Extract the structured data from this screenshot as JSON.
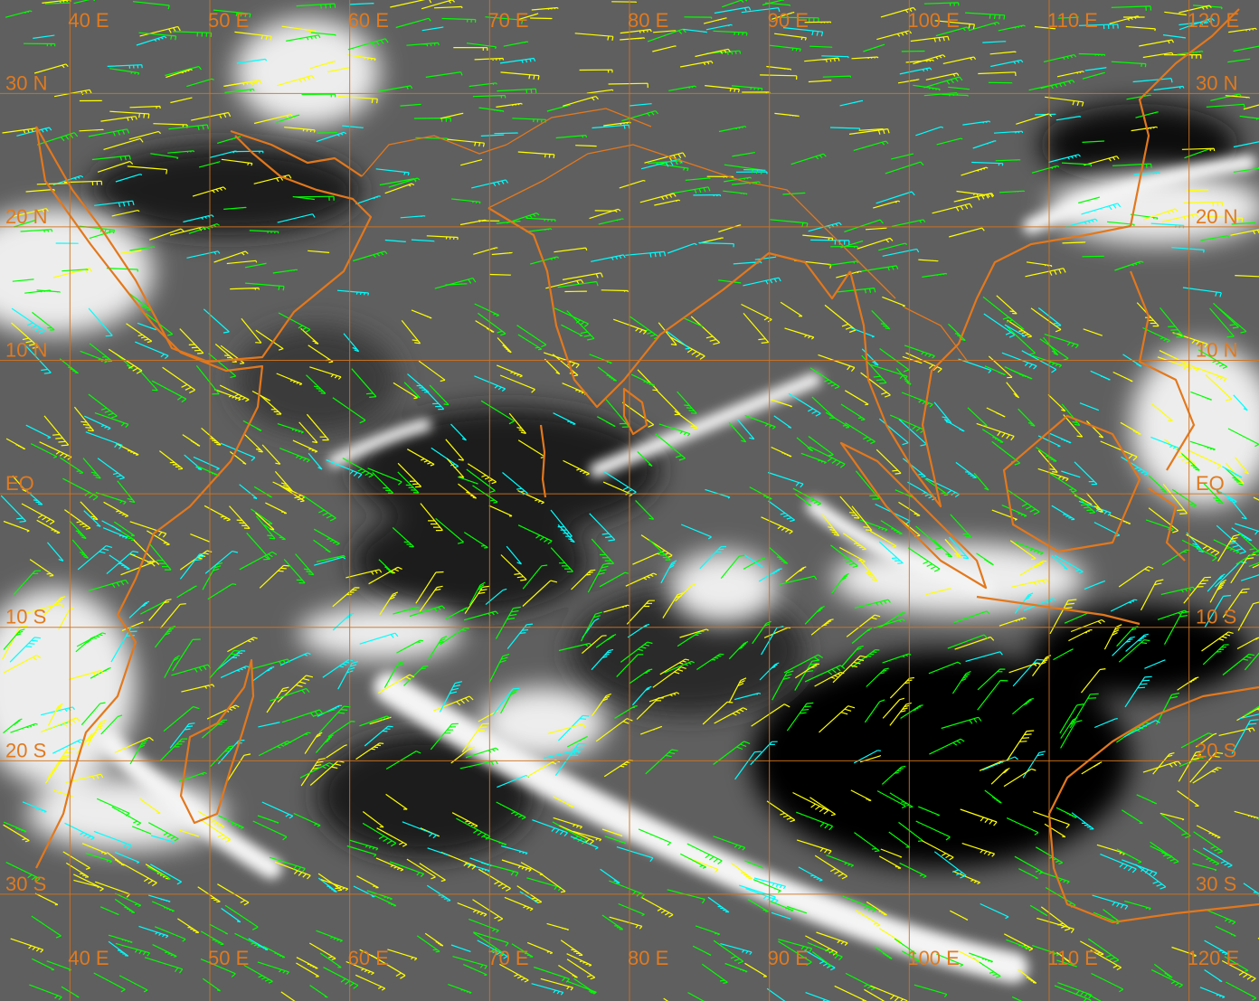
{
  "map": {
    "lon_range": [
      35,
      125
    ],
    "lat_range": [
      -38,
      37
    ],
    "colors": {
      "grid": "#d2741e",
      "coastline": "#e3781c",
      "label": "#e07a1f",
      "wind_high": "#ffff00",
      "wind_mid": "#00ff00",
      "wind_low": "#00ffff",
      "cloud": "#f2f2f2",
      "clear": "#0a0a0a"
    },
    "lat_labels": [
      {
        "text": "30 N",
        "lat": 30
      },
      {
        "text": "20 N",
        "lat": 20
      },
      {
        "text": "10 N",
        "lat": 10
      },
      {
        "text": "EQ",
        "lat": 0
      },
      {
        "text": "10 S",
        "lat": -10
      },
      {
        "text": "20 S",
        "lat": -20
      },
      {
        "text": "30 S",
        "lat": -30
      }
    ],
    "lon_labels": [
      {
        "text": "40 E",
        "lon": 40
      },
      {
        "text": "50 E",
        "lon": 50
      },
      {
        "text": "60 E",
        "lon": 60
      },
      {
        "text": "70 E",
        "lon": 70
      },
      {
        "text": "80 E",
        "lon": 80
      },
      {
        "text": "90 E",
        "lon": 90
      },
      {
        "text": "100 E",
        "lon": 100
      },
      {
        "text": "110 E",
        "lon": 110
      },
      {
        "text": "120 E",
        "lon": 120
      }
    ]
  }
}
